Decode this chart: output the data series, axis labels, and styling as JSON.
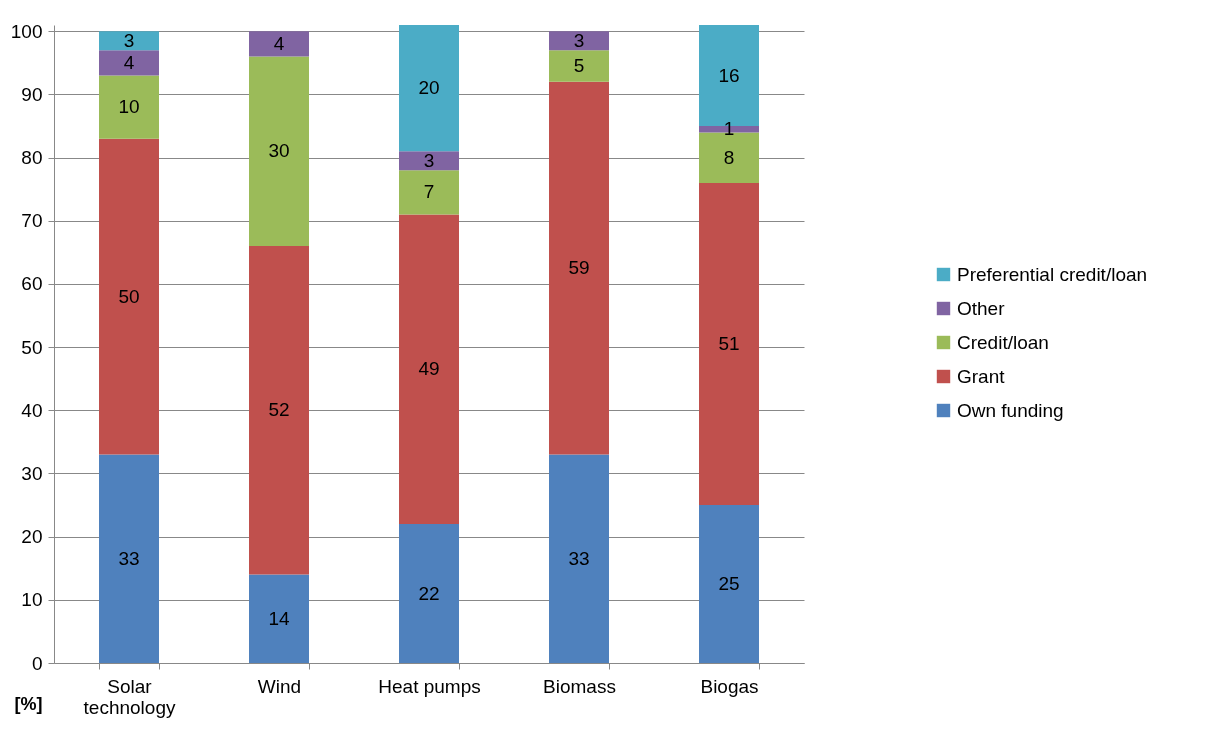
{
  "chart_data": {
    "type": "bar",
    "stacked": true,
    "ylabel": "[%]",
    "categories": [
      "Solar technology",
      "Wind",
      "Heat pumps",
      "Biomass",
      "Biogas"
    ],
    "series": [
      {
        "name": "Own funding",
        "color": "#4f81bd",
        "values": [
          33,
          14,
          22,
          33,
          25
        ]
      },
      {
        "name": "Grant",
        "color": "#c0504d",
        "values": [
          50,
          52,
          49,
          59,
          51
        ]
      },
      {
        "name": "Credit/loan",
        "color": "#9bbb59",
        "values": [
          10,
          30,
          7,
          5,
          8
        ]
      },
      {
        "name": "Other",
        "color": "#8064a2",
        "values": [
          4,
          4,
          3,
          3,
          1
        ]
      },
      {
        "name": "Preferential credit/loan",
        "color": "#4bacc6",
        "values": [
          3,
          null,
          20,
          null,
          16
        ]
      }
    ],
    "ylim": [
      0,
      101
    ],
    "yticks": [
      0,
      10,
      20,
      30,
      40,
      50,
      60,
      70,
      80,
      90,
      100
    ],
    "grid": "y",
    "legend": "right",
    "data_labels": true
  }
}
